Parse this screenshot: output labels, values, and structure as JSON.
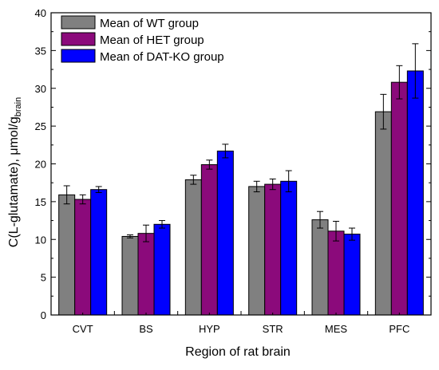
{
  "chart_data": {
    "type": "bar",
    "xlabel": "Region of rat brain",
    "ylabel_main": "C(L-glutamate), μmol/g",
    "ylabel_sub": "brain",
    "categories": [
      "CVT",
      "BS",
      "HYP",
      "STR",
      "MES",
      "PFC"
    ],
    "ylim": [
      0,
      40
    ],
    "yticks": [
      0,
      5,
      10,
      15,
      20,
      25,
      30,
      35,
      40
    ],
    "grid": false,
    "legend_position": "top-left",
    "series": [
      {
        "name": "Mean of WT group",
        "color": "#808080",
        "values": [
          15.9,
          10.4,
          17.9,
          17.0,
          12.6,
          26.9
        ],
        "errors": [
          1.2,
          0.2,
          0.6,
          0.7,
          1.1,
          2.3
        ]
      },
      {
        "name": "Mean of HET group",
        "color": "#8b0a7b",
        "values": [
          15.3,
          10.8,
          19.9,
          17.3,
          11.1,
          30.8
        ],
        "errors": [
          0.6,
          1.1,
          0.6,
          0.7,
          1.3,
          2.2
        ]
      },
      {
        "name": "Mean of DAT-KO group",
        "color": "#0000ff",
        "values": [
          16.6,
          12.0,
          21.7,
          17.7,
          10.7,
          32.3
        ],
        "errors": [
          0.4,
          0.5,
          0.9,
          1.4,
          0.8,
          3.6
        ]
      }
    ]
  }
}
